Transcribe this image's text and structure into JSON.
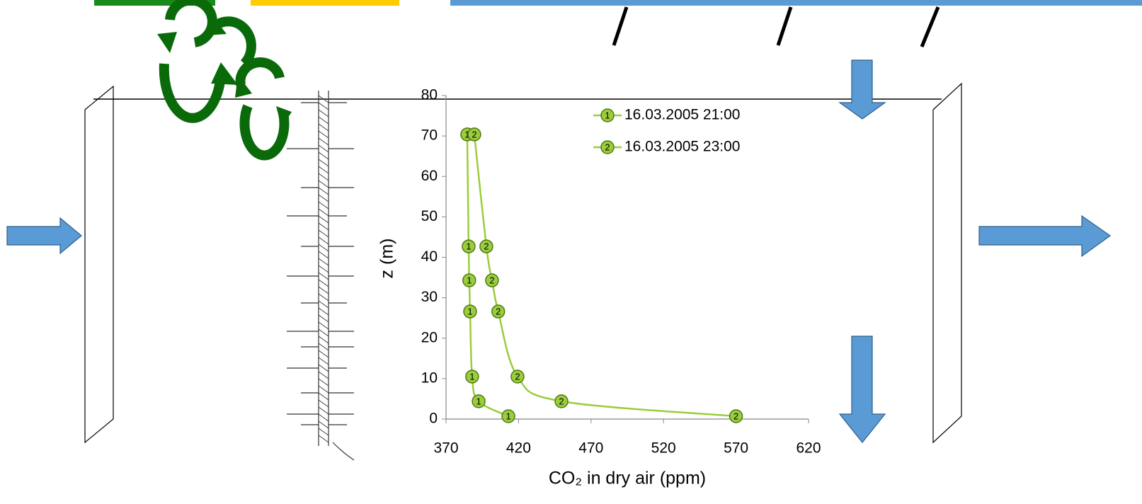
{
  "chart_data": {
    "type": "line",
    "xlabel": "CO₂ in dry air (ppm)",
    "ylabel": "z (m)",
    "xlim": [
      370,
      620
    ],
    "xticks": [
      370,
      420,
      470,
      520,
      570,
      620
    ],
    "ylim": [
      0,
      80
    ],
    "yticks": [
      0,
      10,
      20,
      30,
      40,
      50,
      60,
      70,
      80
    ],
    "series": [
      {
        "name": "16.03.2005 21:00",
        "marker_label": "1",
        "color": "#9acd3c",
        "x": [
          413,
          392.5,
          388,
          386.6,
          386,
          385.6,
          384.6
        ],
        "values": [
          0.7,
          4.4,
          10.5,
          26.6,
          34.3,
          42.7,
          70.4
        ]
      },
      {
        "name": "16.03.2005 23:00",
        "marker_label": "2",
        "color": "#9acd3c",
        "x": [
          570,
          449.6,
          419.3,
          406,
          401.7,
          397.8,
          389.5
        ],
        "values": [
          0.7,
          4.4,
          10.5,
          26.6,
          34.3,
          42.7,
          70.4
        ]
      }
    ]
  }
}
